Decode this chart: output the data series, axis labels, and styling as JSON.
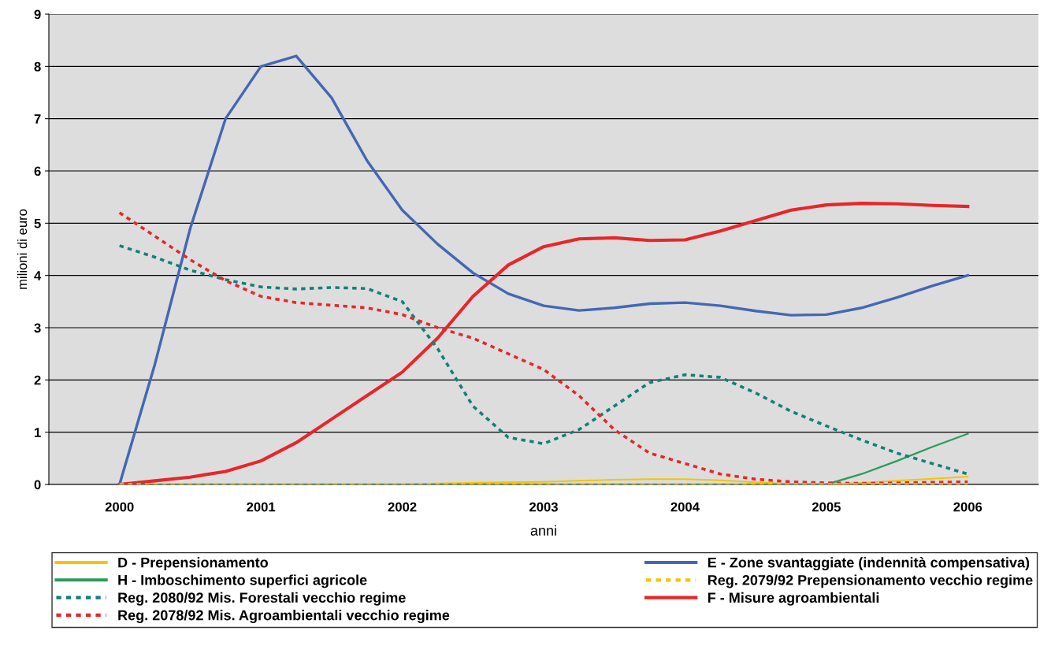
{
  "chart_data": {
    "type": "line",
    "xlabel": "anni",
    "ylabel": "milioni di euro",
    "x": [
      2000,
      2000.25,
      2000.5,
      2000.75,
      2001,
      2001.25,
      2001.5,
      2001.75,
      2002,
      2002.25,
      2002.5,
      2002.75,
      2003,
      2003.25,
      2003.5,
      2003.75,
      2004,
      2004.25,
      2004.5,
      2004.75,
      2005,
      2005.25,
      2005.5,
      2005.75,
      2006
    ],
    "xlim": [
      1999.5,
      2006.5
    ],
    "xticks": [
      2000,
      2001,
      2002,
      2003,
      2004,
      2005,
      2006
    ],
    "ylim": [
      0,
      9
    ],
    "yticks": [
      0,
      1,
      2,
      3,
      4,
      5,
      6,
      7,
      8,
      9
    ],
    "grid": "y",
    "legend": "bottom",
    "marker": "none",
    "series": [
      {
        "name": "D - Prepensionamento",
        "color": "#f5c400",
        "line_style": "solid",
        "values": [
          0,
          0,
          0,
          0,
          0,
          0,
          0,
          0,
          0,
          0.02,
          0.03,
          0.04,
          0.05,
          0.07,
          0.09,
          0.1,
          0.1,
          0.08,
          0.04,
          0.01,
          0,
          0.03,
          0.07,
          0.11,
          0.15
        ]
      },
      {
        "name": "H - Imboschimento superfici agricole",
        "color": "#2e9a5b",
        "line_style": "solid",
        "values": [
          0,
          0,
          0,
          0,
          0,
          0,
          0,
          0,
          0,
          0,
          0,
          0,
          0,
          0,
          0,
          0,
          0,
          0,
          0,
          0,
          0,
          0.2,
          0.45,
          0.72,
          0.97
        ]
      },
      {
        "name": "Reg. 2080/92 Mis. Forestali vecchio regime",
        "color": "#12807a",
        "line_style": "dashed",
        "values": [
          4.57,
          4.35,
          4.1,
          3.92,
          3.78,
          3.74,
          3.77,
          3.75,
          3.5,
          2.6,
          1.5,
          0.9,
          0.78,
          1.05,
          1.5,
          1.95,
          2.1,
          2.05,
          1.75,
          1.4,
          1.12,
          0.85,
          0.6,
          0.4,
          0.2
        ]
      },
      {
        "name": "Reg. 2078/92 Mis. Agroambientali vecchio regime",
        "color": "#e8262a",
        "line_style": "dashed",
        "values": [
          5.2,
          4.75,
          4.3,
          3.9,
          3.6,
          3.48,
          3.43,
          3.38,
          3.25,
          3.0,
          2.8,
          2.5,
          2.2,
          1.7,
          1.05,
          0.6,
          0.4,
          0.2,
          0.1,
          0.05,
          0.03,
          0.02,
          0.03,
          0.04,
          0.05
        ]
      },
      {
        "name": "E - Zone svantaggiate (indennità compensativa)",
        "color": "#4467b5",
        "line_style": "solid",
        "values": [
          0,
          2.3,
          4.9,
          7.0,
          8.0,
          8.2,
          7.4,
          6.2,
          5.25,
          4.6,
          4.05,
          3.65,
          3.42,
          3.33,
          3.38,
          3.46,
          3.48,
          3.42,
          3.32,
          3.24,
          3.25,
          3.38,
          3.58,
          3.8,
          4.0
        ]
      },
      {
        "name": "Reg. 2079/92 Prepensionamento vecchio regime",
        "color": "#f5c400",
        "line_style": "dashed",
        "values": [
          0,
          0,
          0,
          0,
          0,
          0,
          0,
          0,
          0,
          0,
          0,
          0,
          0,
          0,
          0,
          0,
          0,
          0,
          0,
          0,
          0,
          0,
          0,
          0,
          0
        ]
      },
      {
        "name": "F - Misure agroambientali",
        "color": "#e8262a",
        "line_style": "solid",
        "values": [
          0,
          0.07,
          0.14,
          0.25,
          0.45,
          0.8,
          1.25,
          1.7,
          2.15,
          2.8,
          3.6,
          4.2,
          4.55,
          4.7,
          4.72,
          4.67,
          4.68,
          4.85,
          5.05,
          5.25,
          5.35,
          5.38,
          5.37,
          5.34,
          5.32
        ]
      }
    ]
  }
}
